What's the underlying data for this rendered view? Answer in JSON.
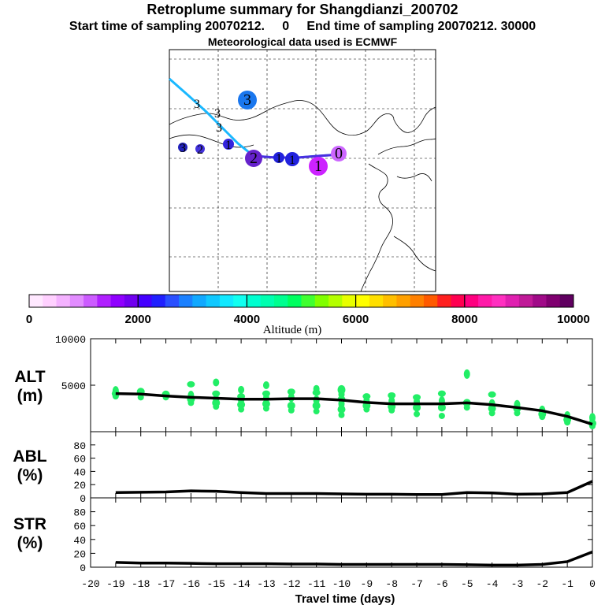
{
  "header": {
    "title": "Retroplume summary for Shangdianzi_200702",
    "subtitle": "Start time of sampling 20070212.     0     End time of sampling 20070212. 30000",
    "met": "Meteorological data used is ECMWF"
  },
  "colorbar": {
    "label": "Altitude (m)",
    "ticks": [
      0,
      2000,
      4000,
      6000,
      8000,
      10000
    ],
    "tick_labels": [
      "0",
      "2000",
      "4000",
      "6000",
      "8000",
      "10000"
    ],
    "colors": [
      "#ffe8ff",
      "#ffd0ff",
      "#f4b2ff",
      "#e28cff",
      "#cc5cff",
      "#b020ff",
      "#9000ff",
      "#7000f0",
      "#4400ff",
      "#2020ff",
      "#2a50ff",
      "#1a80ff",
      "#10a8ff",
      "#10c8ff",
      "#10e8ff",
      "#10fff0",
      "#00ffd0",
      "#00ffb0",
      "#00ff90",
      "#00ff60",
      "#40ff30",
      "#80ff00",
      "#b4ff00",
      "#e8ff00",
      "#ffff00",
      "#ffdf00",
      "#ffbf00",
      "#ffa000",
      "#ff8000",
      "#ff5a00",
      "#ff2020",
      "#ff0050",
      "#ff0080",
      "#ff1aa8",
      "#ff30c0",
      "#e020b0",
      "#c01a98",
      "#a00a88",
      "#800070",
      "#600060"
    ]
  },
  "map": {
    "plume_path": [
      {
        "label": "",
        "color": "#1ab8ff"
      }
    ],
    "markers": [
      {
        "label": "0",
        "color": "#cc66ff"
      },
      {
        "label": "1",
        "color": "#cc22ff"
      },
      {
        "label": "1",
        "color": "#2222dd"
      },
      {
        "label": "1",
        "color": "#2222dd"
      },
      {
        "label": "2",
        "color": "#6622cc"
      },
      {
        "label": "3",
        "color": "#1a77ee"
      },
      {
        "label": "1",
        "color": "#3322dd"
      },
      {
        "label": "2",
        "color": "#4433dd"
      },
      {
        "label": "3",
        "color": "#2222bb"
      },
      {
        "label": "3",
        "color": "#000000"
      },
      {
        "label": "3",
        "color": "#000000"
      },
      {
        "label": "3",
        "color": "#000000"
      }
    ]
  },
  "chart_data": [
    {
      "type": "line",
      "name": "ALT",
      "ylabel_line1": "ALT",
      "ylabel_line2": "(m)",
      "ylim": [
        0,
        10000
      ],
      "yticks": [
        5000,
        10000
      ],
      "ytick_labels": [
        "5000",
        "10000"
      ],
      "x": [
        -19,
        -18,
        -17,
        -16,
        -15,
        -14,
        -13,
        -12,
        -11,
        -10,
        -9,
        -8,
        -7,
        -6,
        -5,
        -4,
        -3,
        -2,
        -1,
        0
      ],
      "values": [
        4100,
        4050,
        3850,
        3700,
        3600,
        3500,
        3500,
        3550,
        3550,
        3400,
        3150,
        3000,
        3000,
        3000,
        3100,
        2900,
        2600,
        2250,
        1650,
        800
      ],
      "scatter": [
        {
          "x": -19,
          "y": [
            3800,
            4100,
            4400
          ]
        },
        {
          "x": -18,
          "y": [
            3700,
            4300
          ]
        },
        {
          "x": -17,
          "y": [
            3700,
            4000
          ]
        },
        {
          "x": -16,
          "y": [
            3100,
            3500,
            3900,
            5100
          ]
        },
        {
          "x": -15,
          "y": [
            2700,
            3100,
            3500,
            4100,
            5300
          ]
        },
        {
          "x": -14,
          "y": [
            2400,
            2900,
            3400,
            3800,
            4500
          ]
        },
        {
          "x": -13,
          "y": [
            2500,
            3000,
            3600,
            4100,
            5000
          ]
        },
        {
          "x": -12,
          "y": [
            2300,
            2800,
            3700,
            4300
          ]
        },
        {
          "x": -11,
          "y": [
            2200,
            2800,
            3400,
            4200,
            4600
          ]
        },
        {
          "x": -10,
          "y": [
            1800,
            2400,
            3000,
            3500,
            4000,
            4500
          ]
        },
        {
          "x": -9,
          "y": [
            2400,
            2800,
            3300,
            3800
          ]
        },
        {
          "x": -8,
          "y": [
            2300,
            2700,
            3300,
            3900
          ]
        },
        {
          "x": -7,
          "y": [
            1900,
            2600,
            3200,
            3700
          ]
        },
        {
          "x": -6,
          "y": [
            1700,
            2600,
            3300,
            4100
          ]
        },
        {
          "x": -5,
          "y": [
            2600,
            3100,
            6200
          ]
        },
        {
          "x": -4,
          "y": [
            2000,
            2500,
            3000,
            4000
          ]
        },
        {
          "x": -3,
          "y": [
            2000,
            2500,
            2900
          ]
        },
        {
          "x": -2,
          "y": [
            1600,
            1900,
            2300
          ]
        },
        {
          "x": -1,
          "y": [
            1000,
            1300,
            1700
          ]
        },
        {
          "x": 0,
          "y": [
            600,
            900,
            1500
          ]
        }
      ]
    },
    {
      "type": "line",
      "name": "ABL",
      "ylabel_line1": "ABL",
      "ylabel_line2": "(%)",
      "ylim": [
        0,
        100
      ],
      "yticks": [
        0,
        20,
        40,
        60,
        80
      ],
      "ytick_labels": [
        "0",
        "20",
        "40",
        "60",
        "80"
      ],
      "x": [
        -19,
        -18,
        -17,
        -16,
        -15,
        -14,
        -13,
        -12,
        -11,
        -10,
        -9,
        -8,
        -7,
        -6,
        -5,
        -4,
        -3,
        -2,
        -1,
        0
      ],
      "values": [
        8,
        8.5,
        9,
        10.5,
        10,
        8,
        6.5,
        6.5,
        6.5,
        6,
        5.5,
        5.5,
        5,
        5,
        8,
        7.5,
        5.5,
        6,
        8,
        25
      ]
    },
    {
      "type": "line",
      "name": "STR",
      "ylabel_line1": "STR",
      "ylabel_line2": "(%)",
      "ylim": [
        0,
        100
      ],
      "yticks": [
        0,
        20,
        40,
        60,
        80
      ],
      "ytick_labels": [
        "0",
        "20",
        "40",
        "60",
        "80"
      ],
      "x": [
        -19,
        -18,
        -17,
        -16,
        -15,
        -14,
        -13,
        -12,
        -11,
        -10,
        -9,
        -8,
        -7,
        -6,
        -5,
        -4,
        -3,
        -2,
        -1,
        0
      ],
      "values": [
        7,
        6,
        6,
        5.5,
        5,
        5,
        5,
        4.5,
        4.5,
        4,
        4,
        4,
        4,
        4,
        3.5,
        3,
        3,
        4,
        8,
        22
      ]
    }
  ],
  "xaxis": {
    "label": "Travel time (days)",
    "ticks": [
      -20,
      -19,
      -18,
      -17,
      -16,
      -15,
      -14,
      -13,
      -12,
      -11,
      -10,
      -9,
      -8,
      -7,
      -6,
      -5,
      -4,
      -3,
      -2,
      -1,
      0
    ],
    "tick_labels": [
      "-20",
      "-19",
      "-18",
      "-17",
      "-16",
      "-15",
      "-14",
      "-13",
      "-12",
      "-11",
      "-10",
      "-9",
      "-8",
      "-7",
      "-6",
      "-5",
      "-4",
      "-3",
      "-2",
      "-1",
      "0"
    ]
  }
}
